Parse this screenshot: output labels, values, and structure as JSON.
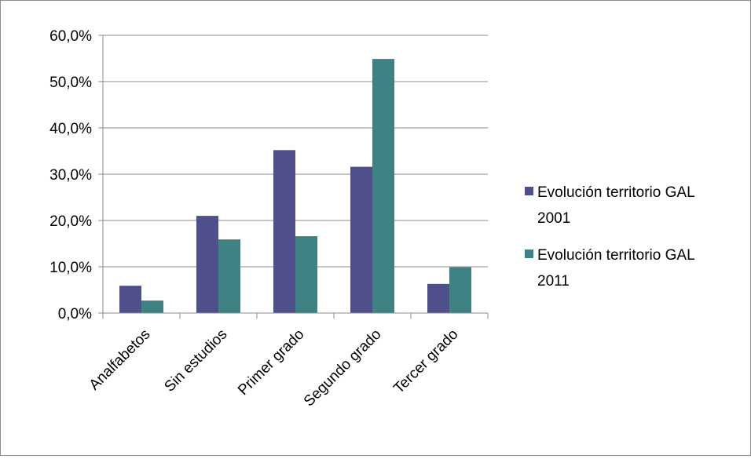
{
  "chart_data": {
    "type": "bar",
    "categories": [
      "Analfabetos",
      "Sin estudios",
      "Primer grado",
      "Segundo grado",
      "Tercer grado"
    ],
    "series": [
      {
        "name": "Evolución territorio GAL 2001",
        "values": [
          5.9,
          21.0,
          35.2,
          31.6,
          6.3
        ],
        "color": "#4f4f8c"
      },
      {
        "name": "Evolución territorio GAL 2011",
        "values": [
          2.7,
          15.9,
          16.6,
          54.9,
          9.9
        ],
        "color": "#3f8284"
      }
    ],
    "y_ticks": [
      "0,0%",
      "10,0%",
      "20,0%",
      "30,0%",
      "40,0%",
      "50,0%",
      "60,0%"
    ],
    "ylim": [
      0,
      60
    ],
    "y_unit": "%",
    "grid": true,
    "legend_position": "right",
    "legend": [
      {
        "line1": "Evolución territorio GAL",
        "line2": "2001"
      },
      {
        "line1": "Evolución territorio GAL",
        "line2": "2011"
      }
    ]
  }
}
